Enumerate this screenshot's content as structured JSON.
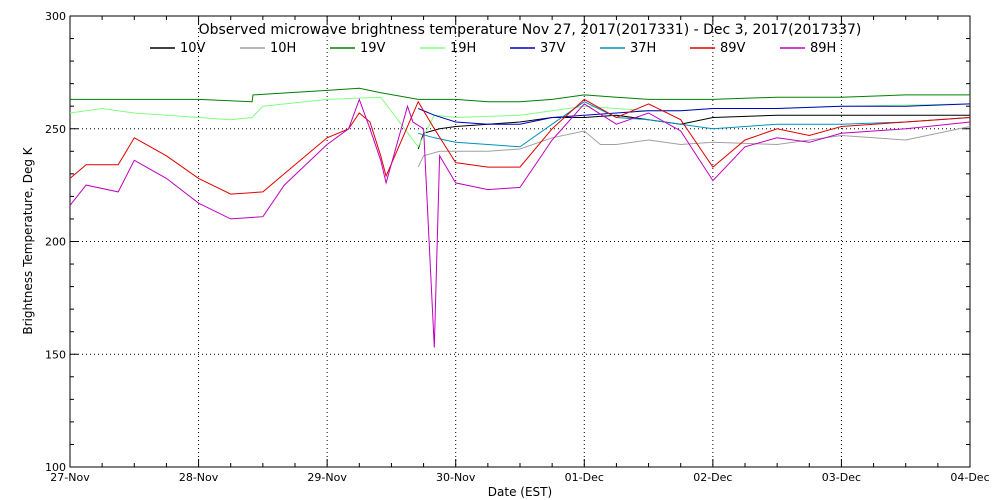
{
  "chart_data": {
    "type": "line",
    "title": "Observed microwave brightness temperature Nov 27, 2017(2017331) - Dec  3, 2017(2017337)",
    "xlabel": "Date (EST)",
    "ylabel": "Brightness Temperature, Deg K",
    "xlim": [
      "2017-11-27",
      "2017-12-04"
    ],
    "ylim": [
      100,
      300
    ],
    "x_ticks": [
      "27-Nov",
      "28-Nov",
      "29-Nov",
      "30-Nov",
      "01-Dec",
      "02-Dec",
      "03-Dec",
      "04-Dec"
    ],
    "y_ticks": [
      100,
      150,
      200,
      250,
      300
    ],
    "grid": "dotted",
    "legend_position": "top",
    "series": [
      {
        "name": "10V",
        "color": "#000000",
        "points": [
          [
            "2017-11-29T17:00",
            241
          ],
          [
            "2017-11-29T18:00",
            248
          ],
          [
            "2017-11-29T21:00",
            250
          ],
          [
            "2017-11-30T00:00",
            251
          ],
          [
            "2017-11-30T06:00",
            252
          ],
          [
            "2017-11-30T12:00",
            253
          ],
          [
            "2017-11-30T18:00",
            255
          ],
          [
            "2017-12-01T00:00",
            255
          ],
          [
            "2017-12-01T06:00",
            256
          ],
          [
            "2017-12-01T12:00",
            254
          ],
          [
            "2017-12-01T18:00",
            252
          ],
          [
            "2017-12-02T00:00",
            255
          ],
          [
            "2017-12-02T12:00",
            256
          ],
          [
            "2017-12-03T00:00",
            256
          ],
          [
            "2017-12-03T12:00",
            256
          ],
          [
            "2017-12-04T00:00",
            256
          ]
        ]
      },
      {
        "name": "10H",
        "color": "#a0a0a0",
        "points": [
          [
            "2017-11-29T17:00",
            233
          ],
          [
            "2017-11-29T18:00",
            238
          ],
          [
            "2017-11-29T21:00",
            240
          ],
          [
            "2017-11-30T00:00",
            240
          ],
          [
            "2017-11-30T06:00",
            240
          ],
          [
            "2017-11-30T12:00",
            241
          ],
          [
            "2017-11-30T18:00",
            246
          ],
          [
            "2017-12-01T00:00",
            249
          ],
          [
            "2017-12-01T03:00",
            243
          ],
          [
            "2017-12-01T06:00",
            243
          ],
          [
            "2017-12-01T12:00",
            245
          ],
          [
            "2017-12-01T18:00",
            243
          ],
          [
            "2017-12-02T00:00",
            244
          ],
          [
            "2017-12-02T12:00",
            243
          ],
          [
            "2017-12-03T00:00",
            247
          ],
          [
            "2017-12-03T12:00",
            245
          ],
          [
            "2017-12-04T00:00",
            251
          ]
        ]
      },
      {
        "name": "19V",
        "color": "#008000",
        "points": [
          [
            "2017-11-27T00:00",
            263
          ],
          [
            "2017-11-27T12:00",
            263
          ],
          [
            "2017-11-28T00:00",
            263
          ],
          [
            "2017-11-28T10:00",
            262
          ],
          [
            "2017-11-28T10:10",
            265
          ],
          [
            "2017-11-29T00:00",
            267
          ],
          [
            "2017-11-29T06:00",
            268
          ],
          [
            "2017-11-29T10:00",
            266
          ],
          [
            "2017-11-29T17:00",
            263
          ],
          [
            "2017-11-30T00:00",
            263
          ],
          [
            "2017-11-30T06:00",
            262
          ],
          [
            "2017-11-30T12:00",
            262
          ],
          [
            "2017-11-30T18:00",
            263
          ],
          [
            "2017-12-01T00:00",
            265
          ],
          [
            "2017-12-01T06:00",
            264
          ],
          [
            "2017-12-01T12:00",
            263
          ],
          [
            "2017-12-01T18:00",
            263
          ],
          [
            "2017-12-02T00:00",
            263
          ],
          [
            "2017-12-02T12:00",
            264
          ],
          [
            "2017-12-03T00:00",
            264
          ],
          [
            "2017-12-03T12:00",
            265
          ],
          [
            "2017-12-04T00:00",
            265
          ]
        ]
      },
      {
        "name": "19H",
        "color": "#80ff80",
        "points": [
          [
            "2017-11-27T00:00",
            257
          ],
          [
            "2017-11-27T06:00",
            259
          ],
          [
            "2017-11-27T12:00",
            257
          ],
          [
            "2017-11-28T00:00",
            255
          ],
          [
            "2017-11-28T06:00",
            254
          ],
          [
            "2017-11-28T10:00",
            255
          ],
          [
            "2017-11-28T12:00",
            260
          ],
          [
            "2017-11-29T00:00",
            263
          ],
          [
            "2017-11-29T10:00",
            264
          ],
          [
            "2017-11-29T17:00",
            242
          ],
          [
            "2017-11-29T20:00",
            256
          ],
          [
            "2017-11-30T00:00",
            255
          ],
          [
            "2017-11-30T12:00",
            256
          ],
          [
            "2017-12-01T00:00",
            260
          ],
          [
            "2017-12-01T12:00",
            258
          ],
          [
            "2017-12-01T18:00",
            258
          ],
          [
            "2017-12-02T00:00",
            259
          ],
          [
            "2017-12-02T12:00",
            259
          ],
          [
            "2017-12-03T00:00",
            260
          ],
          [
            "2017-12-04T00:00",
            261
          ]
        ]
      },
      {
        "name": "37V",
        "color": "#0000c0",
        "points": [
          [
            "2017-11-29T17:00",
            259
          ],
          [
            "2017-11-29T20:00",
            256
          ],
          [
            "2017-11-30T00:00",
            253
          ],
          [
            "2017-11-30T06:00",
            252
          ],
          [
            "2017-11-30T12:00",
            252
          ],
          [
            "2017-11-30T18:00",
            255
          ],
          [
            "2017-12-01T00:00",
            256
          ],
          [
            "2017-12-01T06:00",
            257
          ],
          [
            "2017-12-01T12:00",
            258
          ],
          [
            "2017-12-01T18:00",
            258
          ],
          [
            "2017-12-02T00:00",
            259
          ],
          [
            "2017-12-02T12:00",
            259
          ],
          [
            "2017-12-03T00:00",
            260
          ],
          [
            "2017-12-03T12:00",
            260
          ],
          [
            "2017-12-04T00:00",
            261
          ]
        ]
      },
      {
        "name": "37H",
        "color": "#0090c0",
        "points": [
          [
            "2017-11-29T17:00",
            248
          ],
          [
            "2017-11-29T20:00",
            246
          ],
          [
            "2017-11-30T00:00",
            244
          ],
          [
            "2017-11-30T06:00",
            243
          ],
          [
            "2017-11-30T12:00",
            242
          ],
          [
            "2017-11-30T18:00",
            252
          ],
          [
            "2017-12-01T00:00",
            262
          ],
          [
            "2017-12-01T06:00",
            255
          ],
          [
            "2017-12-01T12:00",
            254
          ],
          [
            "2017-12-01T18:00",
            252
          ],
          [
            "2017-12-02T00:00",
            250
          ],
          [
            "2017-12-02T12:00",
            252
          ],
          [
            "2017-12-03T00:00",
            252
          ],
          [
            "2017-12-03T12:00",
            253
          ],
          [
            "2017-12-04T00:00",
            255
          ]
        ]
      },
      {
        "name": "89V",
        "color": "#e00000",
        "points": [
          [
            "2017-11-27T00:00",
            228
          ],
          [
            "2017-11-27T03:00",
            234
          ],
          [
            "2017-11-27T09:00",
            234
          ],
          [
            "2017-11-27T12:00",
            246
          ],
          [
            "2017-11-27T18:00",
            238
          ],
          [
            "2017-11-28T00:00",
            228
          ],
          [
            "2017-11-28T06:00",
            221
          ],
          [
            "2017-11-28T12:00",
            222
          ],
          [
            "2017-11-28T16:00",
            230
          ],
          [
            "2017-11-28T20:00",
            238
          ],
          [
            "2017-11-29T00:00",
            246
          ],
          [
            "2017-11-29T04:00",
            250
          ],
          [
            "2017-11-29T06:00",
            257
          ],
          [
            "2017-11-29T08:00",
            253
          ],
          [
            "2017-11-29T10:00",
            238
          ],
          [
            "2017-11-29T11:00",
            229
          ],
          [
            "2017-11-29T17:00",
            262
          ],
          [
            "2017-11-29T20:00",
            250
          ],
          [
            "2017-11-30T00:00",
            235
          ],
          [
            "2017-11-30T06:00",
            233
          ],
          [
            "2017-11-30T12:00",
            233
          ],
          [
            "2017-11-30T18:00",
            250
          ],
          [
            "2017-12-01T00:00",
            263
          ],
          [
            "2017-12-01T06:00",
            255
          ],
          [
            "2017-12-01T12:00",
            261
          ],
          [
            "2017-12-01T18:00",
            254
          ],
          [
            "2017-12-02T00:00",
            233
          ],
          [
            "2017-12-02T06:00",
            245
          ],
          [
            "2017-12-02T12:00",
            250
          ],
          [
            "2017-12-02T18:00",
            247
          ],
          [
            "2017-12-03T00:00",
            251
          ],
          [
            "2017-12-03T12:00",
            253
          ],
          [
            "2017-12-04T00:00",
            255
          ]
        ]
      },
      {
        "name": "89H",
        "color": "#c000c0",
        "points": [
          [
            "2017-11-27T00:00",
            216
          ],
          [
            "2017-11-27T03:00",
            225
          ],
          [
            "2017-11-27T09:00",
            222
          ],
          [
            "2017-11-27T12:00",
            236
          ],
          [
            "2017-11-27T18:00",
            228
          ],
          [
            "2017-11-28T00:00",
            217
          ],
          [
            "2017-11-28T06:00",
            210
          ],
          [
            "2017-11-28T12:00",
            211
          ],
          [
            "2017-11-28T16:00",
            225
          ],
          [
            "2017-11-28T20:00",
            234
          ],
          [
            "2017-11-29T00:00",
            243
          ],
          [
            "2017-11-29T04:00",
            250
          ],
          [
            "2017-11-29T06:00",
            263
          ],
          [
            "2017-11-29T08:00",
            250
          ],
          [
            "2017-11-29T10:00",
            236
          ],
          [
            "2017-11-29T11:00",
            226
          ],
          [
            "2017-11-29T15:00",
            260
          ],
          [
            "2017-11-29T16:00",
            253
          ],
          [
            "2017-11-29T18:00",
            250
          ],
          [
            "2017-11-29T20:00",
            153
          ],
          [
            "2017-11-29T21:00",
            238
          ],
          [
            "2017-11-30T00:00",
            226
          ],
          [
            "2017-11-30T06:00",
            223
          ],
          [
            "2017-11-30T12:00",
            224
          ],
          [
            "2017-11-30T18:00",
            245
          ],
          [
            "2017-12-01T00:00",
            261
          ],
          [
            "2017-12-01T06:00",
            252
          ],
          [
            "2017-12-01T12:00",
            257
          ],
          [
            "2017-12-01T18:00",
            249
          ],
          [
            "2017-12-02T00:00",
            227
          ],
          [
            "2017-12-02T06:00",
            242
          ],
          [
            "2017-12-02T12:00",
            246
          ],
          [
            "2017-12-02T18:00",
            244
          ],
          [
            "2017-12-03T00:00",
            248
          ],
          [
            "2017-12-03T12:00",
            250
          ],
          [
            "2017-12-04T00:00",
            253
          ]
        ]
      }
    ]
  }
}
